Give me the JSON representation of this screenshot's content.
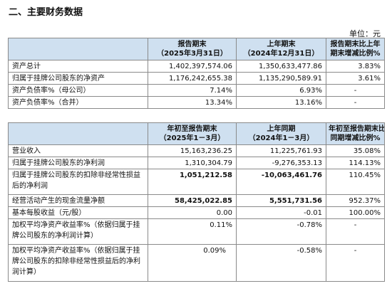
{
  "section_title": "二、主要财务数据",
  "unit": "单位：元",
  "table1": {
    "headers": [
      {
        "l1": "",
        "l2": ""
      },
      {
        "l1": "报告期末",
        "l2": "（2025年3月31日）"
      },
      {
        "l1": "上年期末",
        "l2": "（2024年12月31日）"
      },
      {
        "l1": "报告期末比上年",
        "l2": "期末增减比例%"
      }
    ],
    "rows": [
      {
        "label": "资产总计",
        "current": "1,402,397,574.06",
        "prior": "1,350,633,477.86",
        "change": "3.83%"
      },
      {
        "label": "归属于挂牌公司股东的净资产",
        "current": "1,176,242,655.38",
        "prior": "1,135,290,589.91",
        "change": "3.61%"
      },
      {
        "label": "资产负债率%（母公司）",
        "current": "7.14%",
        "prior": "6.93%",
        "change": "-"
      },
      {
        "label": "资产负债率%（合并）",
        "current": "13.34%",
        "prior": "13.16%",
        "change": "-"
      }
    ]
  },
  "table2": {
    "headers": [
      {
        "l1": "",
        "l2": ""
      },
      {
        "l1": "年初至报告期末",
        "l2": "（2025年1－3月）"
      },
      {
        "l1": "上年同期",
        "l2": "（2024年1－3月）"
      },
      {
        "l1": "年初至报告期末比上年",
        "l2": "同期增减比例%"
      }
    ],
    "rows": [
      {
        "label": "营业收入",
        "current": "15,163,236.25",
        "prior": "11,225,761.93",
        "change": "35.08%"
      },
      {
        "label": "归属于挂牌公司股东的净利润",
        "current": "1,310,304.79",
        "prior": "-9,276,353.13",
        "change": "114.13%"
      },
      {
        "label": "归属于挂牌公司股东的扣除非经常性损益后的净利润",
        "current": "1,051,212.58",
        "prior": "-10,063,461.76",
        "change": "110.45%"
      },
      {
        "label": "经营活动产生的现金流量净额",
        "current": "58,425,022.85",
        "prior": "5,551,731.56",
        "change": "952.37%"
      },
      {
        "label": "基本每股收益（元/股）",
        "current": "0.00",
        "prior": "-0.01",
        "change": "100.00%"
      },
      {
        "label": "加权平均净资产收益率%（依据归属于挂牌公司股东的净利润计算）",
        "current": "0.11%",
        "prior": "-0.78%",
        "change": "-"
      },
      {
        "label": "加权平均净资产收益率%（依据归属于挂牌公司股东的扣除非经常性损益后的净利润计算）",
        "current": "0.09%",
        "prior": "-0.58%",
        "change": "-"
      }
    ]
  }
}
